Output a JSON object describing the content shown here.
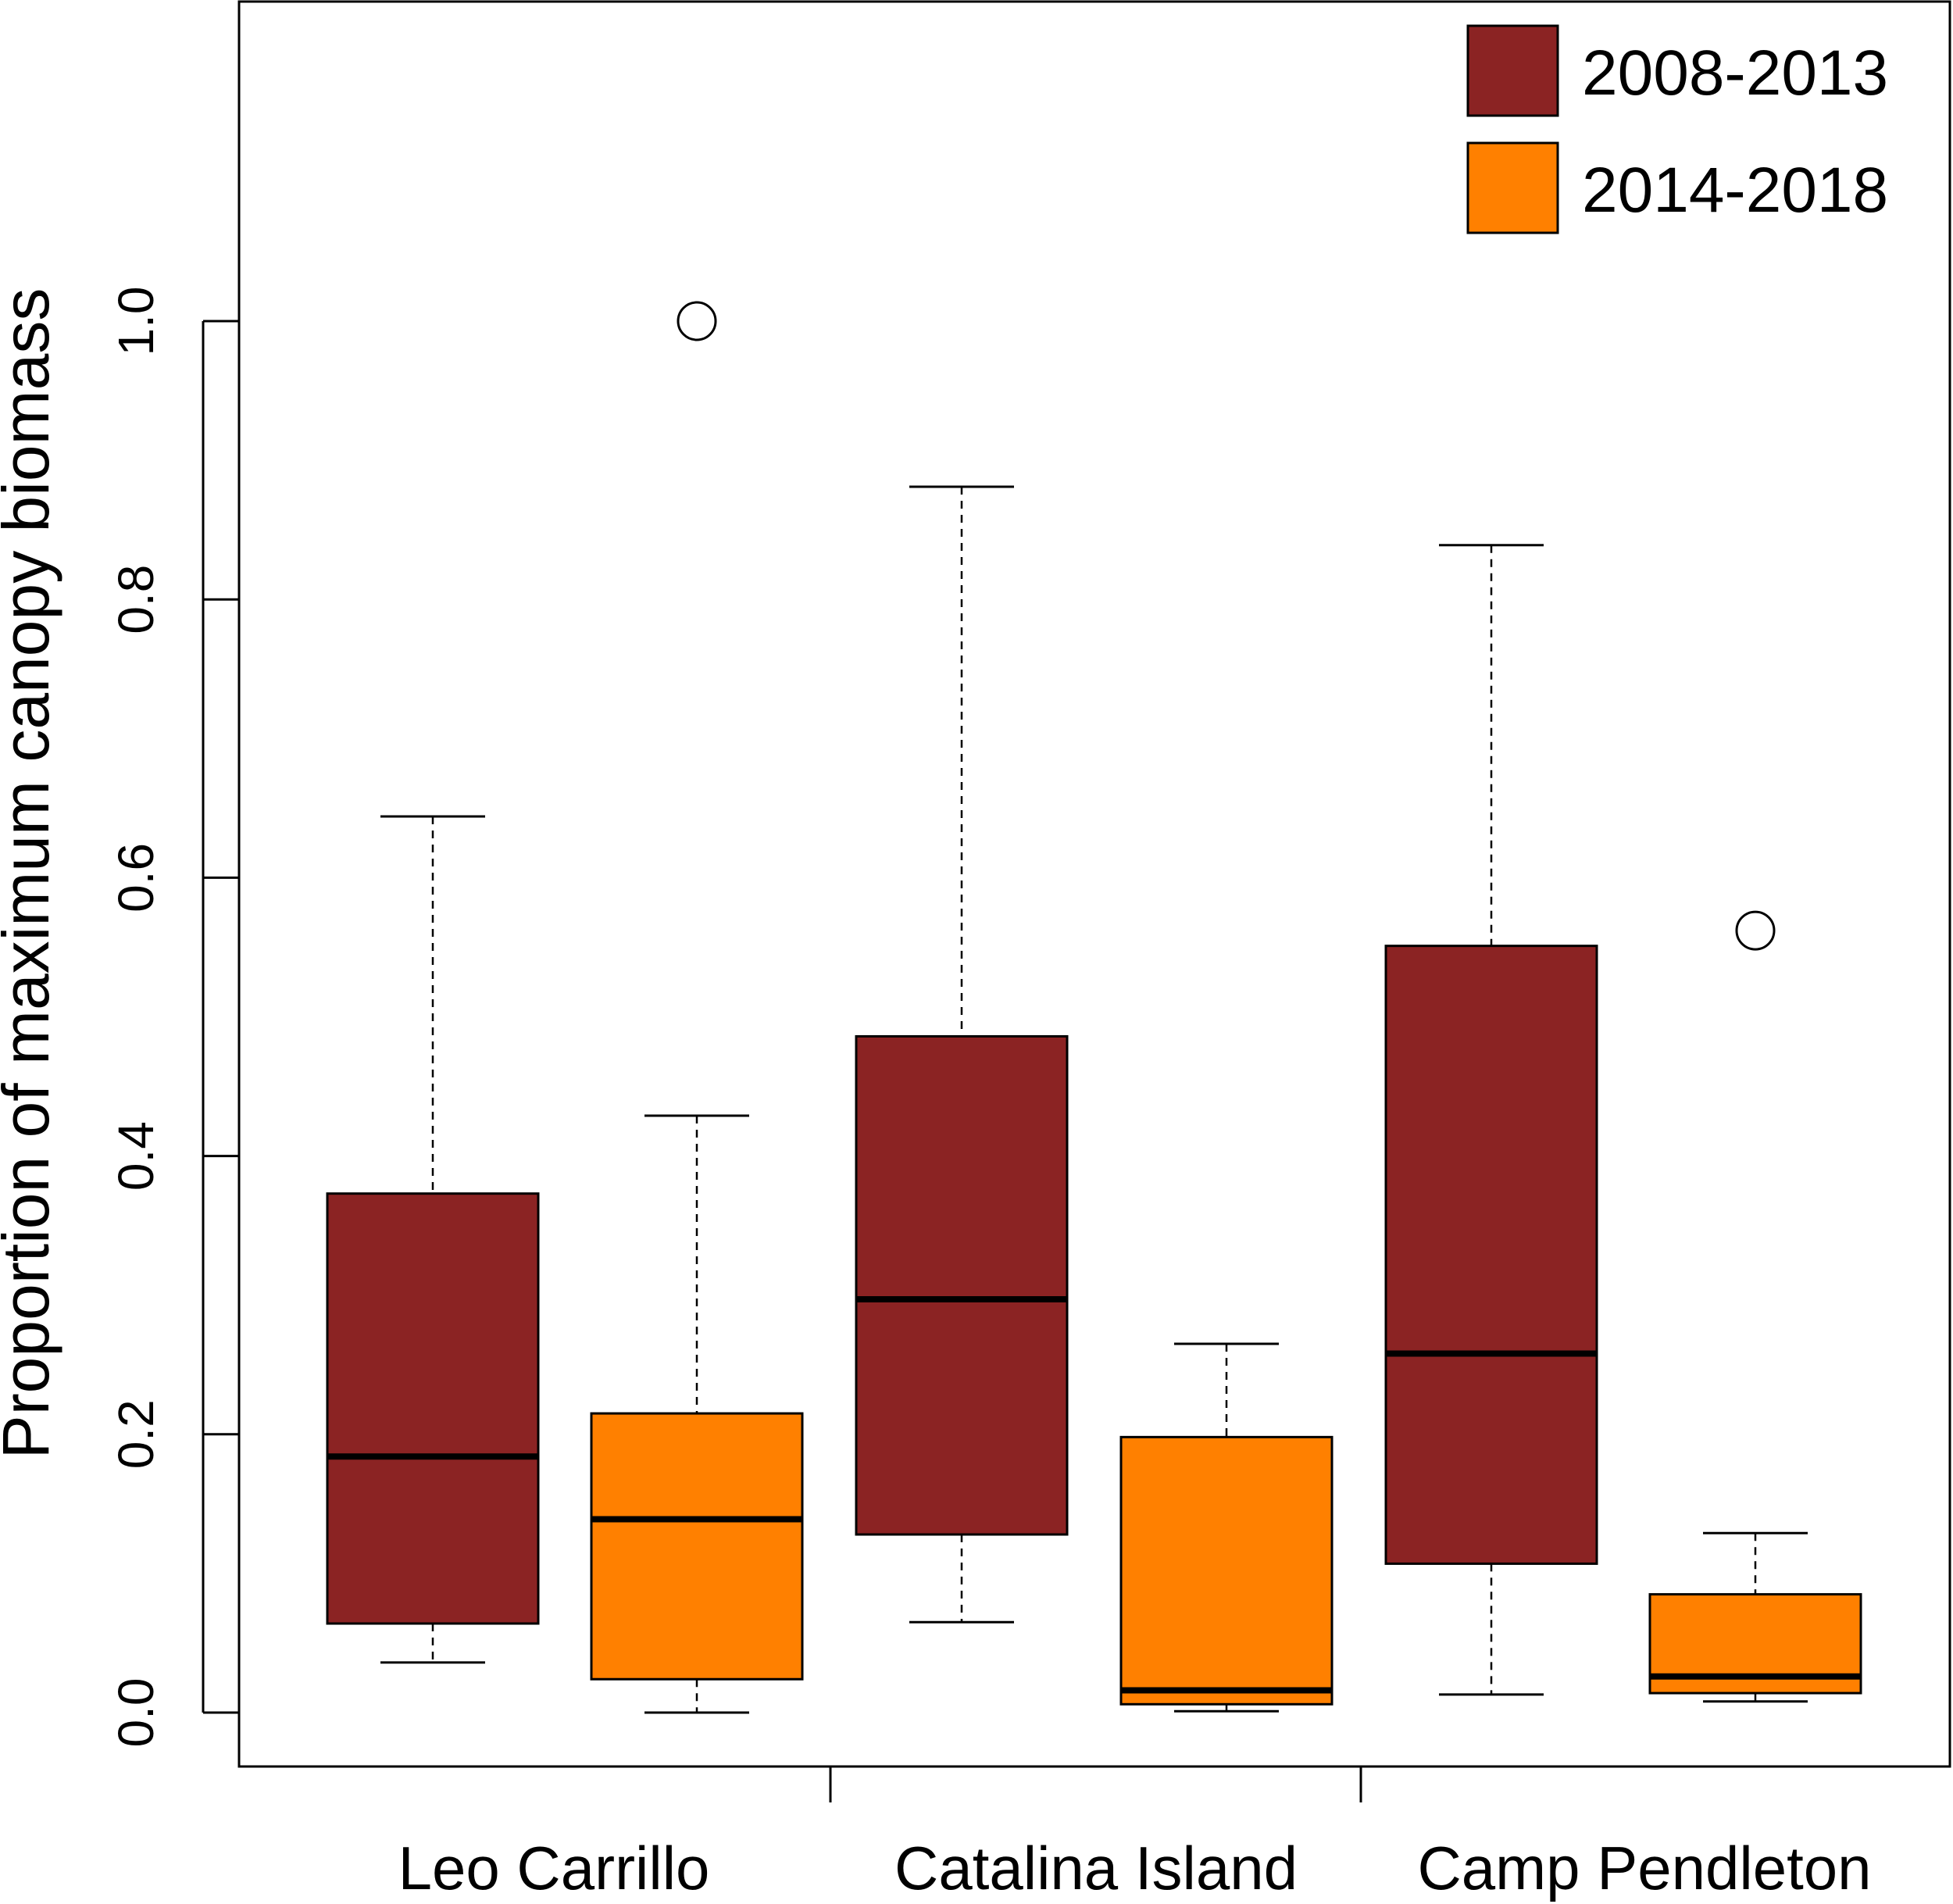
{
  "chart_data": {
    "type": "boxplot",
    "ylabel": "Proportion of maximum canopy biomass",
    "xlabel": "",
    "ylim": [
      -0.04,
      1.2
    ],
    "yticks": [
      "0.0",
      "0.2",
      "0.4",
      "0.6",
      "0.8",
      "1.0"
    ],
    "ytick_values": [
      0.0,
      0.2,
      0.4,
      0.6,
      0.8,
      1.0
    ],
    "categories": [
      "Leo Carrillo",
      "Catalina Island",
      "Camp Pendleton"
    ],
    "legend": {
      "position": "top-right",
      "entries": [
        {
          "label": "2008-2013",
          "color": "#8b2323"
        },
        {
          "label": "2014-2018",
          "color": "#ff8000"
        }
      ]
    },
    "series": [
      {
        "name": "2008-2013",
        "color": "#8b2323",
        "boxes": [
          {
            "site": "Leo Carrillo",
            "whisker_low": 0.036,
            "q1": 0.064,
            "median": 0.184,
            "q3": 0.373,
            "whisker_high": 0.644,
            "outliers": []
          },
          {
            "site": "Catalina Island",
            "whisker_low": 0.065,
            "q1": 0.128,
            "median": 0.297,
            "q3": 0.486,
            "whisker_high": 0.881,
            "outliers": []
          },
          {
            "site": "Camp Pendleton",
            "whisker_low": 0.013,
            "q1": 0.107,
            "median": 0.258,
            "q3": 0.551,
            "whisker_high": 0.839,
            "outliers": []
          }
        ]
      },
      {
        "name": "2014-2018",
        "color": "#ff8000",
        "boxes": [
          {
            "site": "Leo Carrillo",
            "whisker_low": 0.0,
            "q1": 0.024,
            "median": 0.139,
            "q3": 0.215,
            "whisker_high": 0.429,
            "outliers": [
              1.0
            ]
          },
          {
            "site": "Catalina Island",
            "whisker_low": 0.001,
            "q1": 0.006,
            "median": 0.016,
            "q3": 0.198,
            "whisker_high": 0.265,
            "outliers": []
          },
          {
            "site": "Camp Pendleton",
            "whisker_low": 0.008,
            "q1": 0.014,
            "median": 0.026,
            "q3": 0.085,
            "whisker_high": 0.129,
            "outliers": [
              0.562
            ]
          }
        ]
      }
    ]
  }
}
